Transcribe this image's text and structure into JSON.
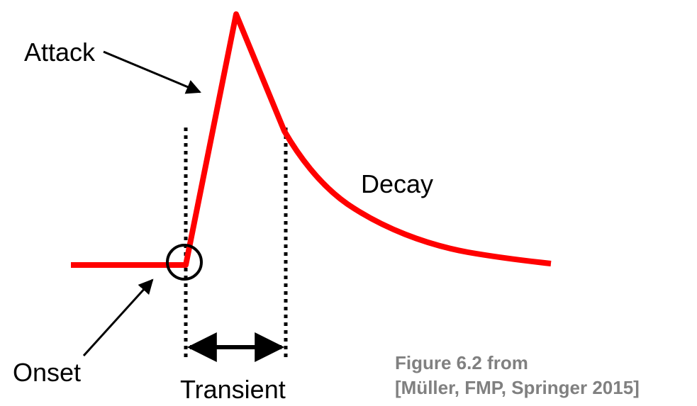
{
  "labels": {
    "attack": "Attack",
    "decay": "Decay",
    "onset": "Onset",
    "transient": "Transient"
  },
  "caption": {
    "line1": "Figure 6.2 from",
    "line2": "[Müller, FMP, Springer 2015]"
  },
  "colors": {
    "envelope": "#ff0000",
    "annotation": "#000000",
    "caption": "#808080"
  }
}
